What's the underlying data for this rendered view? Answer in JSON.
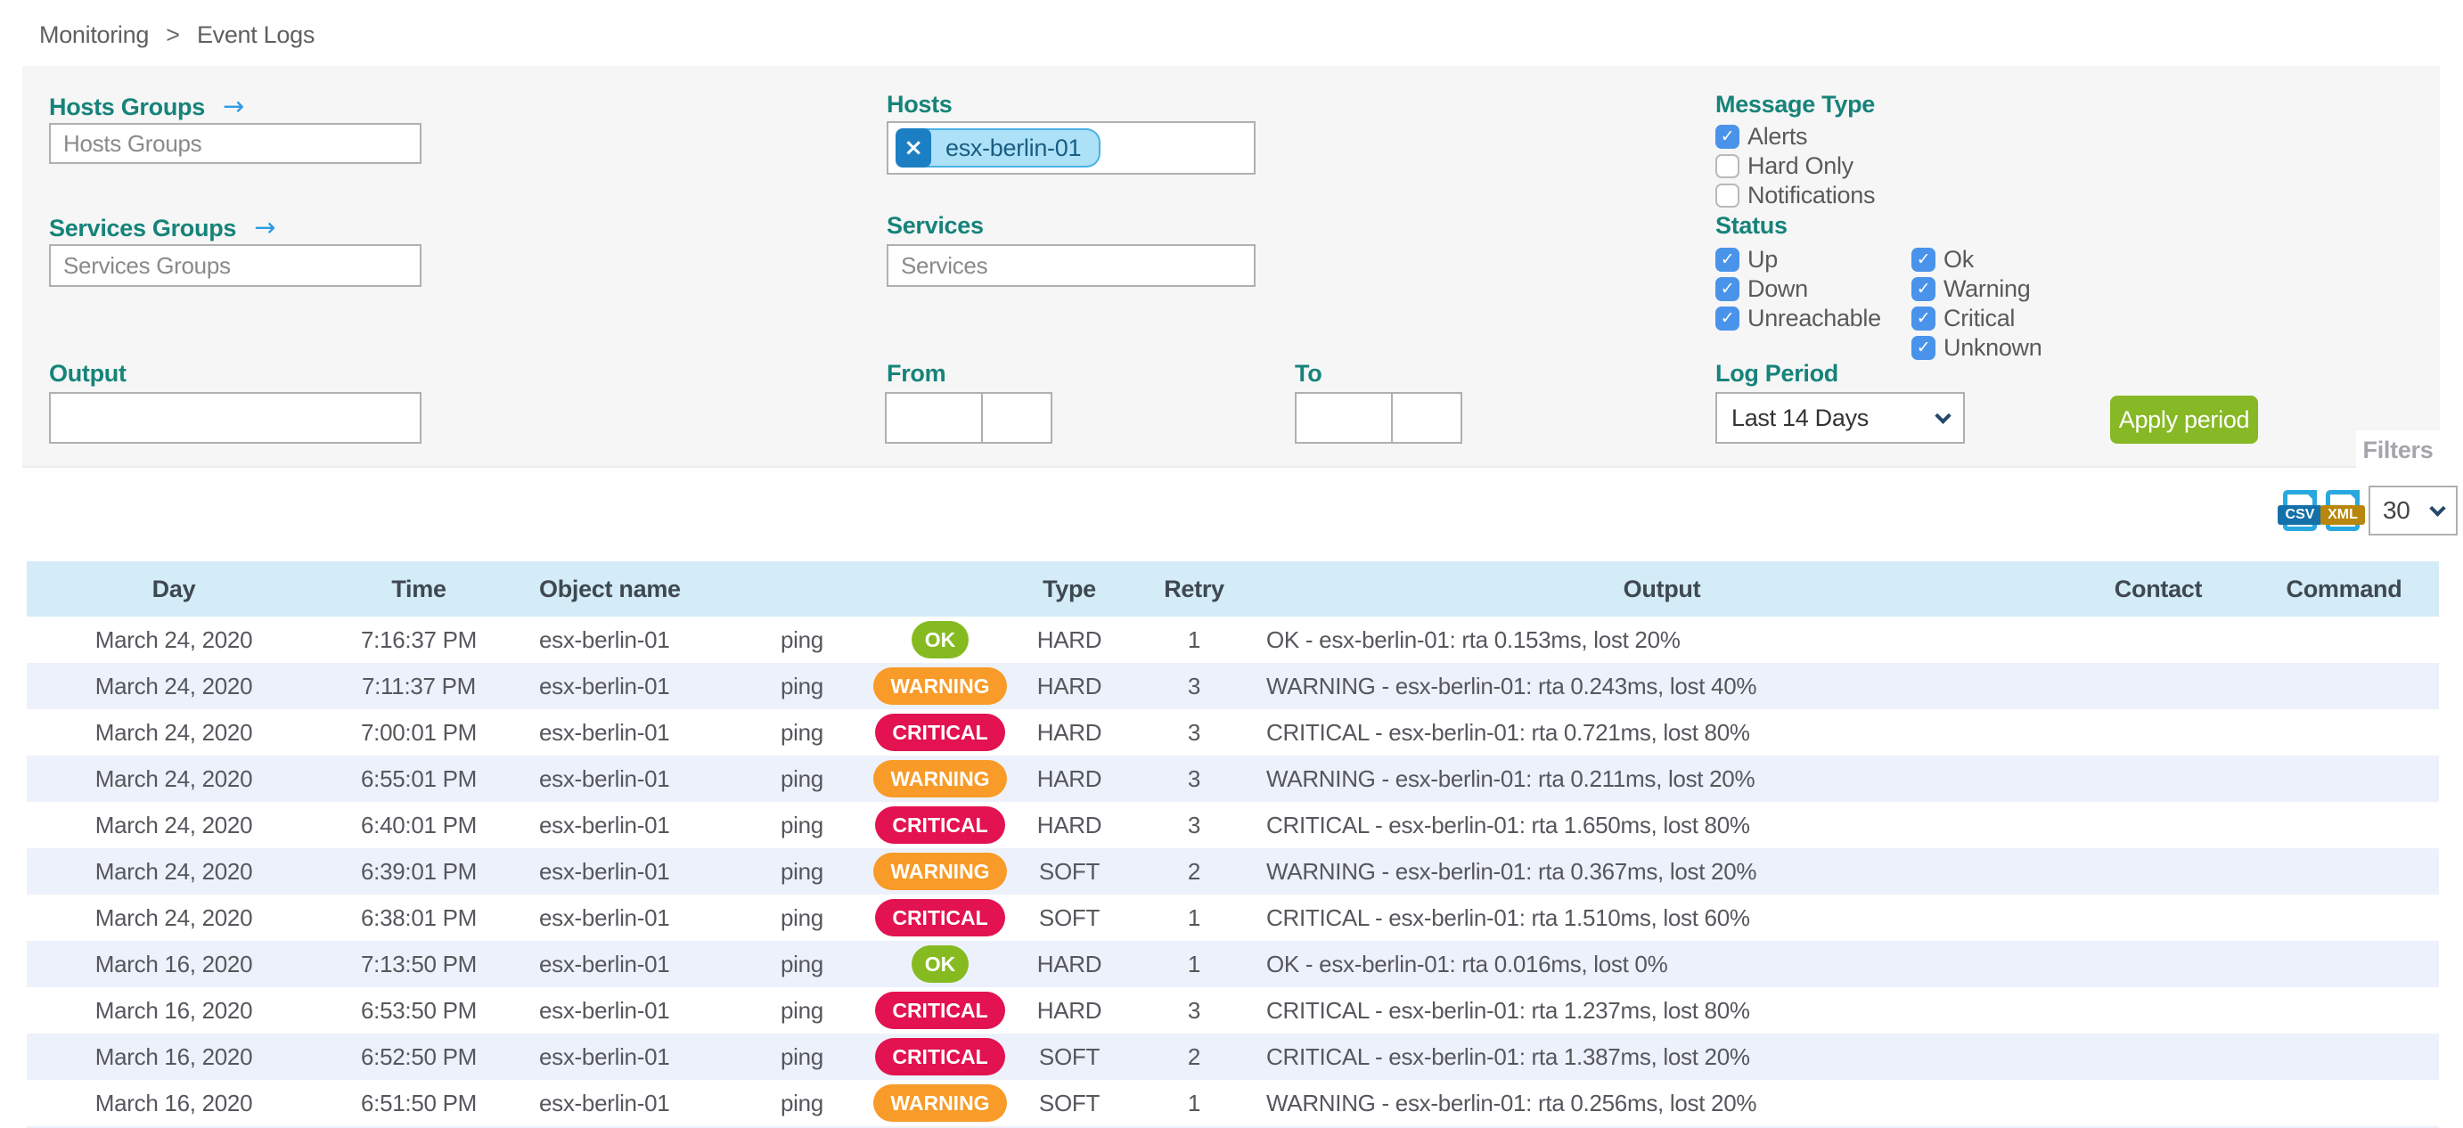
{
  "breadcrumb": {
    "items": [
      "Monitoring",
      "Event Logs"
    ],
    "separator": ">"
  },
  "filter_panel": {
    "tab_label": "Filters",
    "hosts_groups_label": "Hosts Groups",
    "hosts_groups_placeholder": "Hosts Groups",
    "services_groups_label": "Services Groups",
    "services_groups_placeholder": "Services Groups",
    "hosts_label": "Hosts",
    "hosts_selected_chip": "esx-berlin-01",
    "chip_remove_glyph": "×",
    "arrow_glyph": "→",
    "check_glyph": "✓",
    "services_label": "Services",
    "services_placeholder": "Services",
    "message_type_label": "Message Type",
    "message_type_options": [
      {
        "label": "Alerts",
        "checked": true
      },
      {
        "label": "Hard Only",
        "checked": false
      },
      {
        "label": "Notifications",
        "checked": false
      }
    ],
    "status_label": "Status",
    "status_host_options": [
      {
        "label": "Up",
        "checked": true
      },
      {
        "label": "Down",
        "checked": true
      },
      {
        "label": "Unreachable",
        "checked": true
      }
    ],
    "status_service_options": [
      {
        "label": "Ok",
        "checked": true
      },
      {
        "label": "Warning",
        "checked": true
      },
      {
        "label": "Critical",
        "checked": true
      },
      {
        "label": "Unknown",
        "checked": true
      }
    ],
    "output_label": "Output",
    "from_label": "From",
    "to_label": "To",
    "log_period_label": "Log Period",
    "log_period_value": "Last 14 Days",
    "apply_button_label": "Apply period"
  },
  "toolbar": {
    "csv_icon_label": "CSV",
    "xml_icon_label": "XML",
    "page_size_value": "30"
  },
  "table": {
    "headers": {
      "day": "Day",
      "time": "Time",
      "object_name": "Object name",
      "service": "",
      "status": "",
      "type": "Type",
      "retry": "Retry",
      "output": "Output",
      "contact": "Contact",
      "command": "Command"
    },
    "rows": [
      {
        "day": "March 24, 2020",
        "time": "7:16:37 PM",
        "object": "esx-berlin-01",
        "service": "ping",
        "status": "OK",
        "type": "HARD",
        "retry": "1",
        "output": "OK - esx-berlin-01: rta 0.153ms, lost 20%",
        "contact": "",
        "command": ""
      },
      {
        "day": "March 24, 2020",
        "time": "7:11:37 PM",
        "object": "esx-berlin-01",
        "service": "ping",
        "status": "WARNING",
        "type": "HARD",
        "retry": "3",
        "output": "WARNING - esx-berlin-01: rta 0.243ms, lost 40%",
        "contact": "",
        "command": ""
      },
      {
        "day": "March 24, 2020",
        "time": "7:00:01 PM",
        "object": "esx-berlin-01",
        "service": "ping",
        "status": "CRITICAL",
        "type": "HARD",
        "retry": "3",
        "output": "CRITICAL - esx-berlin-01: rta 0.721ms, lost 80%",
        "contact": "",
        "command": ""
      },
      {
        "day": "March 24, 2020",
        "time": "6:55:01 PM",
        "object": "esx-berlin-01",
        "service": "ping",
        "status": "WARNING",
        "type": "HARD",
        "retry": "3",
        "output": "WARNING - esx-berlin-01: rta 0.211ms, lost 20%",
        "contact": "",
        "command": ""
      },
      {
        "day": "March 24, 2020",
        "time": "6:40:01 PM",
        "object": "esx-berlin-01",
        "service": "ping",
        "status": "CRITICAL",
        "type": "HARD",
        "retry": "3",
        "output": "CRITICAL - esx-berlin-01: rta 1.650ms, lost 80%",
        "contact": "",
        "command": ""
      },
      {
        "day": "March 24, 2020",
        "time": "6:39:01 PM",
        "object": "esx-berlin-01",
        "service": "ping",
        "status": "WARNING",
        "type": "SOFT",
        "retry": "2",
        "output": "WARNING - esx-berlin-01: rta 0.367ms, lost 20%",
        "contact": "",
        "command": ""
      },
      {
        "day": "March 24, 2020",
        "time": "6:38:01 PM",
        "object": "esx-berlin-01",
        "service": "ping",
        "status": "CRITICAL",
        "type": "SOFT",
        "retry": "1",
        "output": "CRITICAL - esx-berlin-01: rta 1.510ms, lost 60%",
        "contact": "",
        "command": ""
      },
      {
        "day": "March 16, 2020",
        "time": "7:13:50 PM",
        "object": "esx-berlin-01",
        "service": "ping",
        "status": "OK",
        "type": "HARD",
        "retry": "1",
        "output": "OK - esx-berlin-01: rta 0.016ms, lost 0%",
        "contact": "",
        "command": ""
      },
      {
        "day": "March 16, 2020",
        "time": "6:53:50 PM",
        "object": "esx-berlin-01",
        "service": "ping",
        "status": "CRITICAL",
        "type": "HARD",
        "retry": "3",
        "output": "CRITICAL - esx-berlin-01: rta 1.237ms, lost 80%",
        "contact": "",
        "command": ""
      },
      {
        "day": "March 16, 2020",
        "time": "6:52:50 PM",
        "object": "esx-berlin-01",
        "service": "ping",
        "status": "CRITICAL",
        "type": "SOFT",
        "retry": "2",
        "output": "CRITICAL - esx-berlin-01: rta 1.387ms, lost 20%",
        "contact": "",
        "command": ""
      },
      {
        "day": "March 16, 2020",
        "time": "6:51:50 PM",
        "object": "esx-berlin-01",
        "service": "ping",
        "status": "WARNING",
        "type": "SOFT",
        "retry": "1",
        "output": "WARNING - esx-berlin-01: rta 0.256ms, lost 20%",
        "contact": "",
        "command": ""
      }
    ]
  },
  "colors": {
    "label_teal": "#16837a",
    "checkbox_blue": "#4a93ea",
    "apply_green": "#87b825",
    "badge_ok": "#85bb21",
    "badge_warning": "#f89b28",
    "badge_critical": "#e31250",
    "header_bg": "#d3ecf7",
    "row_alt_bg": "#edf1fb",
    "chip_bg": "#ade1f8",
    "chip_border": "#49b1e8",
    "chip_remove_bg": "#1c7fc4"
  }
}
